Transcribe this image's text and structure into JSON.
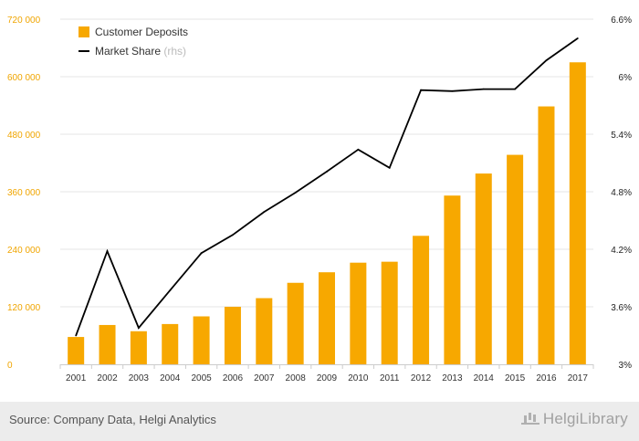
{
  "chart_data": {
    "type": "bar",
    "categories": [
      "2001",
      "2002",
      "2003",
      "2004",
      "2005",
      "2006",
      "2007",
      "2008",
      "2009",
      "2010",
      "2011",
      "2012",
      "2013",
      "2014",
      "2015",
      "2016",
      "2017"
    ],
    "series": [
      {
        "name": "Customer Deposits",
        "type": "bar",
        "axis": "left",
        "color": "#f7a800",
        "values": [
          57000,
          82000,
          69000,
          84000,
          100000,
          120000,
          138000,
          170000,
          192000,
          212000,
          214000,
          268000,
          352000,
          398000,
          437000,
          538000,
          630000
        ]
      },
      {
        "name": "Market Share",
        "legend_note": "(rhs)",
        "type": "line",
        "axis": "right",
        "color": "#000000",
        "values": [
          3.3,
          4.18,
          3.38,
          3.77,
          4.16,
          4.35,
          4.59,
          4.79,
          5.01,
          5.24,
          5.05,
          5.86,
          5.85,
          5.87,
          5.87,
          6.17,
          6.4
        ]
      }
    ],
    "y_left": {
      "min": 0,
      "max": 720000,
      "ticks": [
        0,
        120000,
        240000,
        360000,
        480000,
        600000,
        720000
      ],
      "tick_labels": [
        "0",
        "120 000",
        "240 000",
        "360 000",
        "480 000",
        "600 000",
        "720 000"
      ]
    },
    "y_right": {
      "min": 3,
      "max": 6.6,
      "ticks": [
        3,
        3.6,
        4.2,
        4.8,
        5.4,
        6,
        6.6
      ],
      "tick_labels": [
        "3%",
        "3.6%",
        "4.2%",
        "4.8%",
        "5.4%",
        "6%",
        "6.6%"
      ]
    },
    "grid": true,
    "legend_position": "top-left"
  },
  "footer": {
    "source": "Source: Company Data, Helgi Analytics",
    "brand": "HelgiLibrary"
  }
}
